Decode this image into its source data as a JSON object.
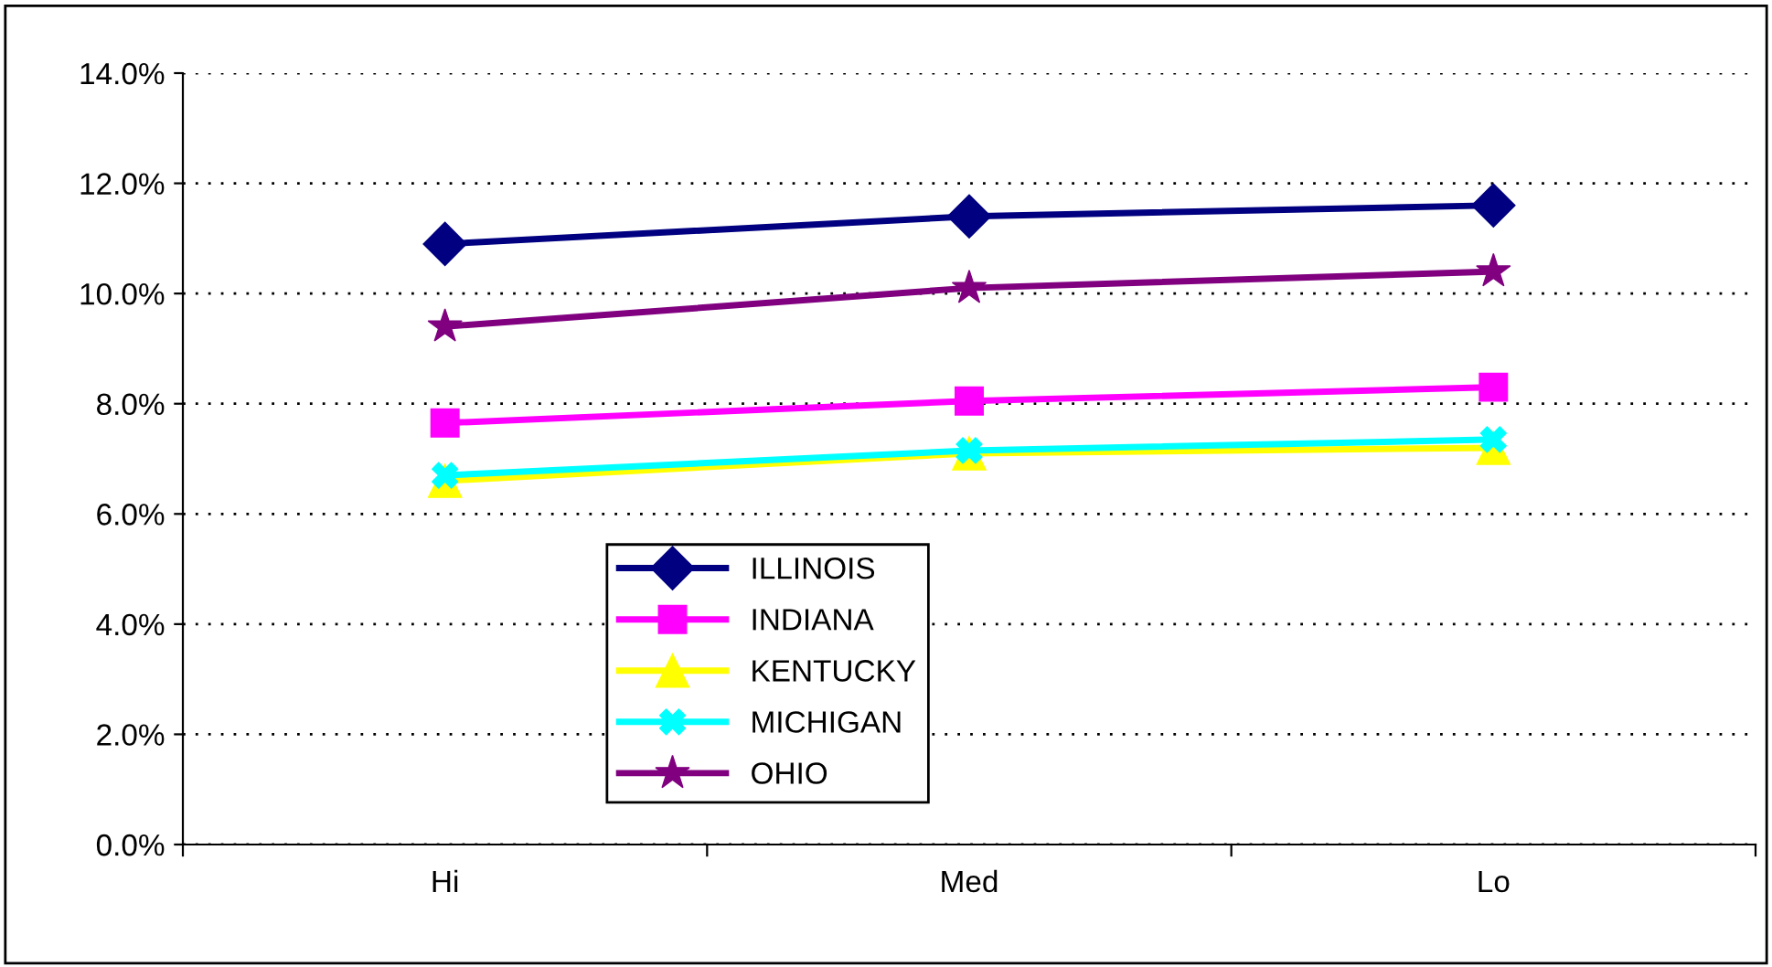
{
  "chart_data": {
    "type": "line",
    "categories": [
      "Hi",
      "Med",
      "Lo"
    ],
    "series": [
      {
        "name": "ILLINOIS",
        "color": "#000080",
        "marker": "diamond",
        "values": [
          10.9,
          11.4,
          11.6
        ]
      },
      {
        "name": "INDIANA",
        "color": "#ff00ff",
        "marker": "square",
        "values": [
          7.65,
          8.05,
          8.3
        ]
      },
      {
        "name": "KENTUCKY",
        "color": "#ffff00",
        "marker": "triangle",
        "values": [
          6.6,
          7.1,
          7.2
        ]
      },
      {
        "name": "MICHIGAN",
        "color": "#00ffff",
        "marker": "cross",
        "values": [
          6.7,
          7.15,
          7.35
        ]
      },
      {
        "name": "OHIO",
        "color": "#800080",
        "marker": "star",
        "values": [
          9.4,
          10.1,
          10.4
        ]
      }
    ],
    "ylim": [
      0,
      14
    ],
    "yticks": [
      {
        "value": 0,
        "label": "0.0%"
      },
      {
        "value": 2,
        "label": "2.0%"
      },
      {
        "value": 4,
        "label": "4.0%"
      },
      {
        "value": 6,
        "label": "6.0%"
      },
      {
        "value": 8,
        "label": "8.0%"
      },
      {
        "value": 10,
        "label": "10.0%"
      },
      {
        "value": 12,
        "label": "12.0%"
      },
      {
        "value": 14,
        "label": "14.0%"
      }
    ],
    "grid": "y",
    "legend": "bottom",
    "line_style": "solid"
  }
}
